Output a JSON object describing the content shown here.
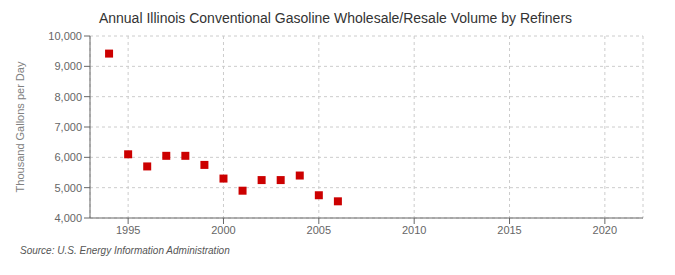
{
  "chart_data": {
    "type": "scatter",
    "title": "Annual Illinois Conventional Gasoline Wholesale/Resale Volume by Refiners",
    "ylabel": "Thousand Gallons per Day",
    "annotations": [
      "Source: U.S. Energy Information Administration"
    ],
    "x": [
      1994,
      1995,
      1996,
      1997,
      1998,
      1999,
      2000,
      2001,
      2002,
      2003,
      2004,
      2005,
      2006
    ],
    "values": [
      9420,
      6100,
      5700,
      6050,
      6050,
      5750,
      5300,
      4900,
      5250,
      5250,
      5400,
      4750,
      4550
    ],
    "color": "#cc0000",
    "marker": "square",
    "xlim": [
      1993,
      2022
    ],
    "xticks": [
      1995,
      2000,
      2005,
      2010,
      2015,
      2020
    ],
    "ylim": [
      4000,
      10000
    ],
    "yticks": [
      {
        "value": 4000,
        "label": "4,000"
      },
      {
        "value": 5000,
        "label": "5,000"
      },
      {
        "value": 6000,
        "label": "6,000"
      },
      {
        "value": 7000,
        "label": "7,000"
      },
      {
        "value": 8000,
        "label": "8,000"
      },
      {
        "value": 9000,
        "label": "9,000"
      },
      {
        "value": 10000,
        "label": "10,000"
      }
    ],
    "grid": true
  }
}
